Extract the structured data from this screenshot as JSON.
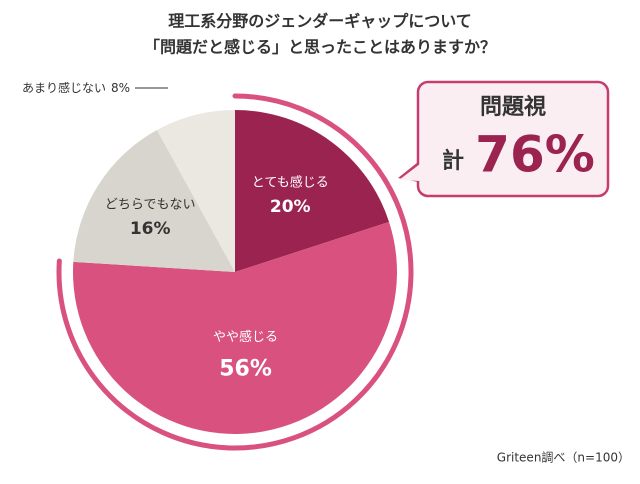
{
  "chart_data": {
    "type": "pie",
    "title": [
      "理工系分野のジェンダーギャップについて",
      "「問題だと感じる」と思ったことはありますか？"
    ],
    "categories": [
      "とても感じる",
      "やや感じる",
      "どちらでもない",
      "あまり感じない"
    ],
    "values": [
      20,
      56,
      16,
      8
    ],
    "value_labels": [
      "20%",
      "56%",
      "16%",
      "8%"
    ],
    "colors": [
      "#9b2350",
      "#d9527f",
      "#d8d5ce",
      "#ebe8e1"
    ],
    "callout": {
      "title": "問題視",
      "prefix": "計",
      "text": "76%"
    },
    "source": "Griteen調べ（n=100）"
  }
}
